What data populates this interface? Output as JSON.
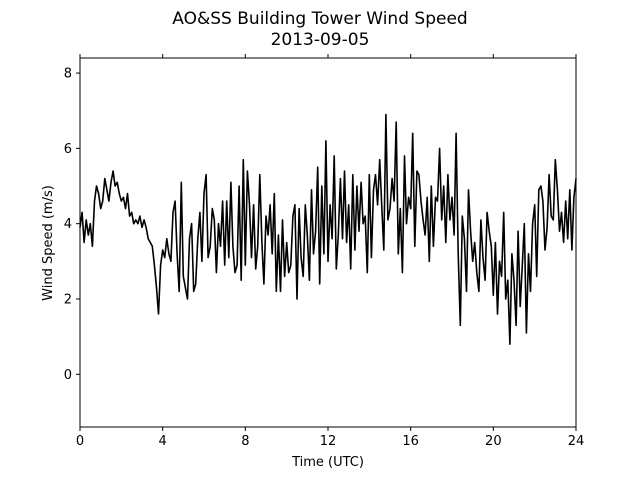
{
  "chart_data": {
    "type": "line",
    "title": "AO&SS Building Tower Wind Speed",
    "subtitle": "2013-09-05",
    "xlabel": "Time (UTC)",
    "ylabel": "Wind Speed (m/s)",
    "xlim": [
      0,
      24
    ],
    "ylim": [
      -1.4,
      8.4
    ],
    "xticks": [
      0,
      4,
      8,
      12,
      16,
      20,
      24
    ],
    "yticks": [
      0,
      2,
      4,
      6,
      8
    ],
    "grid": false,
    "legend": "none",
    "line_color": "#000000",
    "series": [
      {
        "x": [
          0,
          0.1,
          0.2,
          0.3,
          0.4,
          0.5,
          0.6,
          0.7,
          0.8,
          0.9,
          1.0,
          1.1,
          1.2,
          1.3,
          1.4,
          1.5,
          1.6,
          1.7,
          1.8,
          1.9,
          2.0,
          2.1,
          2.2,
          2.3,
          2.4,
          2.5,
          2.6,
          2.7,
          2.8,
          2.9,
          3.0,
          3.1,
          3.2,
          3.3,
          3.4,
          3.5,
          3.6,
          3.7,
          3.8,
          3.9,
          4.0,
          4.1,
          4.2,
          4.3,
          4.4,
          4.5,
          4.6,
          4.7,
          4.8,
          4.9,
          5.0,
          5.1,
          5.2,
          5.3,
          5.4,
          5.5,
          5.6,
          5.7,
          5.8,
          5.9,
          6.0,
          6.1,
          6.2,
          6.3,
          6.4,
          6.5,
          6.6,
          6.7,
          6.8,
          6.9,
          7.0,
          7.1,
          7.2,
          7.3,
          7.4,
          7.5,
          7.6,
          7.7,
          7.8,
          7.9,
          8.0,
          8.1,
          8.2,
          8.3,
          8.4,
          8.5,
          8.6,
          8.7,
          8.8,
          8.9,
          9.0,
          9.1,
          9.2,
          9.3,
          9.4,
          9.5,
          9.6,
          9.7,
          9.8,
          9.9,
          10.0,
          10.1,
          10.2,
          10.3,
          10.4,
          10.5,
          10.6,
          10.7,
          10.8,
          10.9,
          11.0,
          11.1,
          11.2,
          11.3,
          11.4,
          11.5,
          11.6,
          11.7,
          11.8,
          11.9,
          12.0,
          12.1,
          12.2,
          12.3,
          12.4,
          12.5,
          12.6,
          12.7,
          12.8,
          12.9,
          13.0,
          13.1,
          13.2,
          13.3,
          13.4,
          13.5,
          13.6,
          13.7,
          13.8,
          13.9,
          14.0,
          14.1,
          14.2,
          14.3,
          14.4,
          14.5,
          14.6,
          14.7,
          14.8,
          14.9,
          15.0,
          15.1,
          15.2,
          15.3,
          15.4,
          15.5,
          15.6,
          15.7,
          15.8,
          15.9,
          16.0,
          16.1,
          16.2,
          16.3,
          16.4,
          16.5,
          16.6,
          16.7,
          16.8,
          16.9,
          17.0,
          17.1,
          17.2,
          17.3,
          17.4,
          17.5,
          17.6,
          17.7,
          17.8,
          17.9,
          18.0,
          18.1,
          18.2,
          18.3,
          18.4,
          18.5,
          18.6,
          18.7,
          18.8,
          18.9,
          19.0,
          19.1,
          19.2,
          19.3,
          19.4,
          19.5,
          19.6,
          19.7,
          19.8,
          19.9,
          20.0,
          20.1,
          20.2,
          20.3,
          20.4,
          20.5,
          20.6,
          20.7,
          20.8,
          20.9,
          21.0,
          21.1,
          21.2,
          21.3,
          21.4,
          21.5,
          21.6,
          21.7,
          21.8,
          21.9,
          22.0,
          22.1,
          22.2,
          22.3,
          22.4,
          22.5,
          22.6,
          22.7,
          22.8,
          22.9,
          23.0,
          23.1,
          23.2,
          23.3,
          23.4,
          23.5,
          23.6,
          23.7,
          23.8,
          23.9,
          24.0
        ],
        "y": [
          3.9,
          4.3,
          3.5,
          4.1,
          3.7,
          4.0,
          3.4,
          4.6,
          5.0,
          4.8,
          4.4,
          4.6,
          5.2,
          4.9,
          4.6,
          5.1,
          5.4,
          5.0,
          5.1,
          4.8,
          4.6,
          4.7,
          4.4,
          4.8,
          4.2,
          4.3,
          4.0,
          4.1,
          4.0,
          4.2,
          3.9,
          4.1,
          3.9,
          3.6,
          3.5,
          3.4,
          2.9,
          2.3,
          1.6,
          2.9,
          3.3,
          3.1,
          3.6,
          3.2,
          3.0,
          4.3,
          4.6,
          3.2,
          2.2,
          5.1,
          2.6,
          2.3,
          2.0,
          3.6,
          4.0,
          2.2,
          2.4,
          3.6,
          4.3,
          3.0,
          4.8,
          5.3,
          3.1,
          3.4,
          4.4,
          4.1,
          2.7,
          4.0,
          3.4,
          4.6,
          2.9,
          4.6,
          3.1,
          5.1,
          3.4,
          2.7,
          2.9,
          5.0,
          2.5,
          5.7,
          2.9,
          5.4,
          4.5,
          3.1,
          4.5,
          2.8,
          3.4,
          5.3,
          3.5,
          2.4,
          4.2,
          3.7,
          4.5,
          3.2,
          4.8,
          2.2,
          3.7,
          2.2,
          4.1,
          2.6,
          3.5,
          2.7,
          2.9,
          4.2,
          4.5,
          2.0,
          4.4,
          3.1,
          2.6,
          4.5,
          3.7,
          2.5,
          4.9,
          3.2,
          3.8,
          5.5,
          2.4,
          5.0,
          3.2,
          6.2,
          3.0,
          4.5,
          3.6,
          5.8,
          2.8,
          3.7,
          5.2,
          3.6,
          5.4,
          3.5,
          4.5,
          2.8,
          5.3,
          3.3,
          5.0,
          3.8,
          5.1,
          4.0,
          4.2,
          2.7,
          5.3,
          3.1,
          4.9,
          5.3,
          4.5,
          5.7,
          4.5,
          3.3,
          6.9,
          4.1,
          4.4,
          5.2,
          4.6,
          6.7,
          3.2,
          4.4,
          2.7,
          5.8,
          4.0,
          4.7,
          4.4,
          6.4,
          3.4,
          5.4,
          5.3,
          4.6,
          4.1,
          3.7,
          4.7,
          3.0,
          5.0,
          3.4,
          4.7,
          4.6,
          6.0,
          4.1,
          5.0,
          3.5,
          5.3,
          4.1,
          4.7,
          3.7,
          6.4,
          3.2,
          1.3,
          4.2,
          3.6,
          2.2,
          4.9,
          3.8,
          3.0,
          3.5,
          2.7,
          2.2,
          4.1,
          3.1,
          2.5,
          4.3,
          3.8,
          3.4,
          2.1,
          3.5,
          1.6,
          3.0,
          2.6,
          4.3,
          2.0,
          2.5,
          0.8,
          3.2,
          2.5,
          1.3,
          3.8,
          1.8,
          2.9,
          4.0,
          1.1,
          3.2,
          2.2,
          4.0,
          4.5,
          2.6,
          4.9,
          5.0,
          4.6,
          3.3,
          3.9,
          5.3,
          4.2,
          4.1,
          5.7,
          4.9,
          3.8,
          4.3,
          3.5,
          4.6,
          3.6,
          4.9,
          3.3,
          4.7,
          5.2
        ]
      }
    ]
  }
}
